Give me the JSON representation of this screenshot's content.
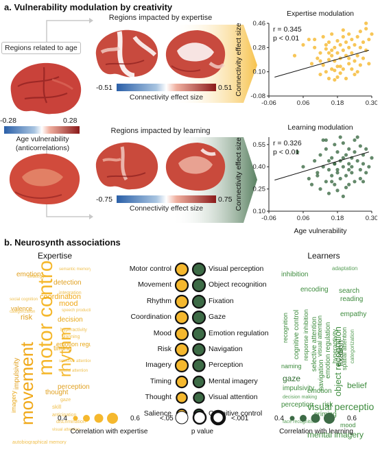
{
  "section_a": {
    "title": "a. Vulnerability modulation by creativity",
    "regions_age": "Regions related to age",
    "regions_expertise": "Regions impacted by expertise",
    "regions_learning": "Regions impacted by learning",
    "age_cbar": {
      "min": "-0.28",
      "max": "0.28",
      "label1": "Age vulnerability",
      "label2": "(anticorrelations)"
    },
    "exp_cbar": {
      "min": "-0.51",
      "max": "0.51",
      "label": "Connectivity effect size"
    },
    "learn_cbar": {
      "min": "-0.75",
      "max": "0.75",
      "label": "Connectivity effect size"
    },
    "colors": {
      "expertise": "#f5b82e",
      "learning": "#3d6b46",
      "cbar_neg": "#2a5fa8",
      "cbar_pos": "#8b1a1a"
    }
  },
  "chart_data": [
    {
      "type": "scatter",
      "title": "Expertise modulation",
      "stat_r": "r = 0.345",
      "stat_p": "p < 0.01",
      "ylabel": "Connectivity effect size",
      "xlabel": "",
      "xticks": [
        "-0.06",
        "0.06",
        "0.18",
        "0.30"
      ],
      "yticks": [
        "-0.08",
        "0.10",
        "0.28",
        "0.46"
      ],
      "xlim": [
        -0.06,
        0.3
      ],
      "ylim": [
        -0.08,
        0.46
      ],
      "fit": {
        "x": [
          -0.04,
          0.29
        ],
        "y": [
          0.06,
          0.26
        ]
      },
      "color": "#f5b82e",
      "points": {
        "x": [
          0.03,
          0.06,
          0.08,
          0.09,
          0.1,
          0.11,
          0.12,
          0.12,
          0.13,
          0.13,
          0.14,
          0.14,
          0.15,
          0.15,
          0.15,
          0.16,
          0.16,
          0.16,
          0.17,
          0.17,
          0.17,
          0.18,
          0.18,
          0.18,
          0.18,
          0.19,
          0.19,
          0.19,
          0.2,
          0.2,
          0.2,
          0.21,
          0.21,
          0.21,
          0.22,
          0.22,
          0.22,
          0.23,
          0.23,
          0.23,
          0.24,
          0.24,
          0.25,
          0.25,
          0.25,
          0.26,
          0.26,
          0.27,
          0.27,
          0.28,
          0.28,
          0.29,
          0.29,
          0.3,
          0.17,
          0.14,
          0.22,
          0.12,
          0.2,
          0.26,
          0.16,
          0.24,
          0.19,
          0.1,
          0.15,
          0.28
        ],
        "y": [
          0.22,
          0.3,
          0.34,
          0.16,
          0.28,
          0.2,
          0.08,
          0.24,
          0.36,
          0.15,
          0.1,
          0.27,
          0.32,
          0.19,
          0.05,
          0.38,
          0.22,
          0.12,
          0.28,
          0.18,
          0.04,
          0.33,
          0.24,
          0.14,
          0.06,
          0.3,
          0.2,
          0.09,
          0.36,
          0.26,
          0.12,
          0.22,
          0.32,
          0.05,
          0.28,
          0.16,
          0.38,
          0.24,
          0.12,
          0.34,
          0.3,
          0.18,
          0.36,
          0.22,
          0.1,
          0.28,
          0.4,
          0.32,
          0.2,
          0.42,
          0.26,
          0.34,
          0.16,
          0.38,
          0.11,
          0.3,
          0.2,
          0.18,
          0.41,
          0.15,
          0.26,
          0.08,
          0.14,
          0.34,
          0.24,
          0.46
        ]
      }
    },
    {
      "type": "scatter",
      "title": "Learning modulation",
      "stat_r": "r = 0.326",
      "stat_p": "p < 0.01",
      "ylabel": "Connectivity effect size",
      "xlabel": "Age vulnerability",
      "xticks": [
        "-0.06",
        "0.06",
        "0.18",
        "0.30"
      ],
      "yticks": [
        "0.10",
        "0.25",
        "0.40",
        "0.55"
      ],
      "xlim": [
        -0.06,
        0.3
      ],
      "ylim": [
        0.1,
        0.6
      ],
      "fit": {
        "x": [
          -0.04,
          0.29
        ],
        "y": [
          0.31,
          0.5
        ]
      },
      "color": "#3d6b46",
      "points": {
        "x": [
          0.04,
          0.06,
          0.08,
          0.1,
          0.11,
          0.12,
          0.12,
          0.13,
          0.14,
          0.14,
          0.15,
          0.15,
          0.16,
          0.16,
          0.17,
          0.17,
          0.17,
          0.18,
          0.18,
          0.18,
          0.19,
          0.19,
          0.2,
          0.2,
          0.2,
          0.21,
          0.21,
          0.22,
          0.22,
          0.22,
          0.23,
          0.23,
          0.24,
          0.24,
          0.25,
          0.25,
          0.26,
          0.26,
          0.27,
          0.27,
          0.28,
          0.28,
          0.29,
          0.3,
          0.13,
          0.16,
          0.19,
          0.21,
          0.24,
          0.11,
          0.15,
          0.18,
          0.23,
          0.26,
          0.09,
          0.2,
          0.17,
          0.22,
          0.14,
          0.27
        ],
        "y": [
          0.5,
          0.4,
          0.32,
          0.44,
          0.36,
          0.25,
          0.48,
          0.4,
          0.3,
          0.52,
          0.38,
          0.22,
          0.46,
          0.34,
          0.55,
          0.28,
          0.42,
          0.5,
          0.38,
          0.24,
          0.44,
          0.32,
          0.56,
          0.4,
          0.2,
          0.48,
          0.34,
          0.52,
          0.42,
          0.28,
          0.46,
          0.36,
          0.5,
          0.3,
          0.44,
          0.6,
          0.38,
          0.54,
          0.42,
          0.48,
          0.36,
          0.52,
          0.4,
          0.46,
          0.58,
          0.3,
          0.6,
          0.26,
          0.58,
          0.34,
          0.44,
          0.36,
          0.4,
          0.32,
          0.28,
          0.46,
          0.42,
          0.38,
          0.58,
          0.3
        ]
      }
    }
  ],
  "section_b": {
    "title": "b. Neurosynth associations",
    "expertise_title": "Expertise",
    "learners_title": "Learners",
    "rows": [
      {
        "left": "Motor control",
        "right": "Visual perception",
        "ls": 1.0,
        "rs": 1.0
      },
      {
        "left": "Movement",
        "right": "Object recognition",
        "ls": 1.0,
        "rs": 1.0
      },
      {
        "left": "Rhythm",
        "right": "Fixation",
        "ls": 1.0,
        "rs": 1.0
      },
      {
        "left": "Coordination",
        "right": "Gaze",
        "ls": 1.0,
        "rs": 1.0
      },
      {
        "left": "Mood",
        "right": "Emotion regulation",
        "ls": 1.0,
        "rs": 1.0
      },
      {
        "left": "Risk",
        "right": "Navigation",
        "ls": 1.0,
        "rs": 0.95
      },
      {
        "left": "Imagery",
        "right": "Perception",
        "ls": 1.0,
        "rs": 0.95
      },
      {
        "left": "Timing",
        "right": "Mental imagery",
        "ls": 0.9,
        "rs": 0.9
      },
      {
        "left": "Thought",
        "right": "Visual attention",
        "ls": 0.85,
        "rs": 0.85
      },
      {
        "left": "Salience",
        "right": "Cognitive control",
        "ls": 0.8,
        "rs": 0.8
      }
    ],
    "legend": {
      "exp_min": "0.4",
      "exp_max": "0.6",
      "exp_label": "Correlation with expertise",
      "p_lt05": "<.05",
      "p_lt001": "<.001",
      "p_label": "p value",
      "learn_min": "0.4",
      "learn_max": "0.6",
      "learn_label": "Correlation with learning"
    },
    "expertise_cloud": [
      {
        "t": "motor control",
        "s": 30,
        "x": 46,
        "y": 168,
        "r": -90,
        "c": "#f5b82e"
      },
      {
        "t": "movement",
        "s": 26,
        "x": 20,
        "y": 240,
        "r": -90,
        "c": "#f0a818"
      },
      {
        "t": "rhythm",
        "s": 24,
        "x": 78,
        "y": 170,
        "r": -90,
        "c": "#f5b82e"
      },
      {
        "t": "emotion",
        "s": 10,
        "x": 18,
        "y": 16,
        "r": 0,
        "c": "#e0a020"
      },
      {
        "t": "detection",
        "s": 10,
        "x": 72,
        "y": 28,
        "r": 0,
        "c": "#e0a020"
      },
      {
        "t": "mood",
        "s": 11,
        "x": 80,
        "y": 58,
        "r": 0,
        "c": "#f0a818"
      },
      {
        "t": "coordination",
        "s": 11,
        "x": 52,
        "y": 48,
        "r": 0,
        "c": "#f0a818"
      },
      {
        "t": "risk",
        "s": 11,
        "x": 24,
        "y": 78,
        "r": 0,
        "c": "#e0a020"
      },
      {
        "t": "valence",
        "s": 9,
        "x": 10,
        "y": 66,
        "r": 0,
        "c": "#e0a020"
      },
      {
        "t": "decision",
        "s": 10,
        "x": 78,
        "y": 82,
        "r": 0,
        "c": "#e8a81a"
      },
      {
        "t": "emotion regulation",
        "s": 9,
        "x": 76,
        "y": 118,
        "r": 0,
        "c": "#e8a81a"
      },
      {
        "t": "impulsivity",
        "s": 10,
        "x": 14,
        "y": 188,
        "r": -90,
        "c": "#e0a020"
      },
      {
        "t": "timing",
        "s": 10,
        "x": 72,
        "y": 124,
        "r": 0,
        "c": "#e8a81a"
      },
      {
        "t": "thought",
        "s": 10,
        "x": 60,
        "y": 188,
        "r": 0,
        "c": "#e0a020"
      },
      {
        "t": "perception",
        "s": 10,
        "x": 78,
        "y": 180,
        "r": 0,
        "c": "#e0a020"
      },
      {
        "t": "imagery",
        "s": 9,
        "x": 10,
        "y": 222,
        "r": -90,
        "c": "#e8a81a"
      },
      {
        "t": "strategy",
        "s": 7,
        "x": 34,
        "y": 20,
        "r": 0,
        "c": "#f0c050"
      },
      {
        "t": "integration",
        "s": 7,
        "x": 80,
        "y": 44,
        "r": 0,
        "c": "#f0c050"
      },
      {
        "t": "semantic memory",
        "s": 6,
        "x": 80,
        "y": 10,
        "r": 0,
        "c": "#f0c050"
      },
      {
        "t": "social cognition",
        "s": 6,
        "x": 8,
        "y": 54,
        "r": 0,
        "c": "#f0c050"
      },
      {
        "t": "categorization",
        "s": 6,
        "x": 8,
        "y": 72,
        "r": 0,
        "c": "#f0c050"
      },
      {
        "t": "speech production",
        "s": 6,
        "x": 84,
        "y": 70,
        "r": 0,
        "c": "#f0c050"
      },
      {
        "t": "hyperactivity",
        "s": 7,
        "x": 82,
        "y": 98,
        "r": 0,
        "c": "#f0c050"
      },
      {
        "t": "planning",
        "s": 7,
        "x": 84,
        "y": 108,
        "r": 0,
        "c": "#f0c050"
      },
      {
        "t": "spatial attention",
        "s": 6,
        "x": 80,
        "y": 158,
        "r": 0,
        "c": "#f0c050"
      },
      {
        "t": "discrimination",
        "s": 7,
        "x": 76,
        "y": 232,
        "r": 0,
        "c": "#f0c050"
      },
      {
        "t": "autobiographical memory",
        "s": 7,
        "x": 12,
        "y": 262,
        "r": 0,
        "c": "#f0c050"
      },
      {
        "t": "visual attention",
        "s": 6,
        "x": 70,
        "y": 244,
        "r": 0,
        "c": "#f0c050"
      },
      {
        "t": "skill",
        "s": 8,
        "x": 70,
        "y": 210,
        "r": 0,
        "c": "#f0c050"
      },
      {
        "t": "anticipation",
        "s": 7,
        "x": 70,
        "y": 222,
        "r": 0,
        "c": "#f0c050"
      },
      {
        "t": "selective attention",
        "s": 6,
        "x": 80,
        "y": 144,
        "r": 0,
        "c": "#f0c050"
      },
      {
        "t": "gaze",
        "s": 7,
        "x": 82,
        "y": 200,
        "r": 0,
        "c": "#f0c050"
      }
    ],
    "learners_cloud": [
      {
        "t": "visual perception",
        "s": 14,
        "x": 44,
        "y": 206,
        "r": 0,
        "c": "#3d8b3d"
      },
      {
        "t": "object recognition",
        "s": 13,
        "x": 82,
        "y": 198,
        "r": -90,
        "c": "#3d8b3d"
      },
      {
        "t": "fixation",
        "s": 12,
        "x": 86,
        "y": 154,
        "r": -90,
        "c": "#2f6b30"
      },
      {
        "t": "gaze",
        "s": 12,
        "x": 8,
        "y": 166,
        "r": 0,
        "c": "#2f6b30"
      },
      {
        "t": "inhibition",
        "s": 10,
        "x": 6,
        "y": 16,
        "r": 0,
        "c": "#3d8b3d"
      },
      {
        "t": "encoding",
        "s": 10,
        "x": 34,
        "y": 38,
        "r": 0,
        "c": "#3d8b3d"
      },
      {
        "t": "search",
        "s": 10,
        "x": 90,
        "y": 40,
        "r": 0,
        "c": "#3d8b3d"
      },
      {
        "t": "reading",
        "s": 10,
        "x": 92,
        "y": 52,
        "r": 0,
        "c": "#3d8b3d"
      },
      {
        "t": "empathy",
        "s": 10,
        "x": 92,
        "y": 74,
        "r": 0,
        "c": "#3d8b3d"
      },
      {
        "t": "cognitive control",
        "s": 10,
        "x": 24,
        "y": 144,
        "r": -90,
        "c": "#3d8b3d"
      },
      {
        "t": "selective attention",
        "s": 10,
        "x": 50,
        "y": 162,
        "r": -90,
        "c": "#3d8b3d"
      },
      {
        "t": "emotion regulation",
        "s": 10,
        "x": 70,
        "y": 172,
        "r": -90,
        "c": "#3d8b3d"
      },
      {
        "t": "response inhibition",
        "s": 9,
        "x": 38,
        "y": 146,
        "r": -90,
        "c": "#3d8b3d"
      },
      {
        "t": "impulsivity",
        "s": 10,
        "x": 8,
        "y": 182,
        "r": 0,
        "c": "#3d8b3d"
      },
      {
        "t": "naming",
        "s": 9,
        "x": 6,
        "y": 150,
        "r": 0,
        "c": "#3d8b3d"
      },
      {
        "t": "emotion",
        "s": 10,
        "x": 44,
        "y": 186,
        "r": 0,
        "c": "#3d8b3d"
      },
      {
        "t": "perception",
        "s": 10,
        "x": 6,
        "y": 206,
        "r": 0,
        "c": "#3d8b3d"
      },
      {
        "t": "risk",
        "s": 10,
        "x": 66,
        "y": 206,
        "r": 0,
        "c": "#3d8b3d"
      },
      {
        "t": "priming",
        "s": 10,
        "x": 54,
        "y": 220,
        "r": 0,
        "c": "#3d8b3d"
      },
      {
        "t": "mood",
        "s": 9,
        "x": 92,
        "y": 236,
        "r": 0,
        "c": "#3d8b3d"
      },
      {
        "t": "mental imagery",
        "s": 12,
        "x": 44,
        "y": 248,
        "r": 0,
        "c": "#3d8b3d"
      },
      {
        "t": "belief",
        "s": 12,
        "x": 102,
        "y": 176,
        "r": 0,
        "c": "#3d8b3d"
      },
      {
        "t": "adaptation",
        "s": 8,
        "x": 80,
        "y": 8,
        "r": 0,
        "c": "#5aa05a"
      },
      {
        "t": "categorization",
        "s": 8,
        "x": 106,
        "y": 150,
        "r": -90,
        "c": "#5aa05a"
      },
      {
        "t": "navigation",
        "s": 10,
        "x": 60,
        "y": 190,
        "r": -90,
        "c": "#3d8b3d"
      },
      {
        "t": "hyperactivity",
        "s": 9,
        "x": 80,
        "y": 150,
        "r": -90,
        "c": "#3d8b3d"
      },
      {
        "t": "recognition",
        "s": 9,
        "x": 8,
        "y": 120,
        "r": -90,
        "c": "#3d8b3d"
      },
      {
        "t": "decision making",
        "s": 7,
        "x": 8,
        "y": 196,
        "r": 0,
        "c": "#5aa05a"
      },
      {
        "t": "face recognition",
        "s": 7,
        "x": 8,
        "y": 232,
        "r": 0,
        "c": "#5aa05a"
      },
      {
        "t": "spatial attention",
        "s": 9,
        "x": 94,
        "y": 160,
        "r": -90,
        "c": "#3d8b3d"
      },
      {
        "t": "visual attention",
        "s": 9,
        "x": 58,
        "y": 140,
        "r": -90,
        "c": "#3d8b3d"
      }
    ]
  }
}
